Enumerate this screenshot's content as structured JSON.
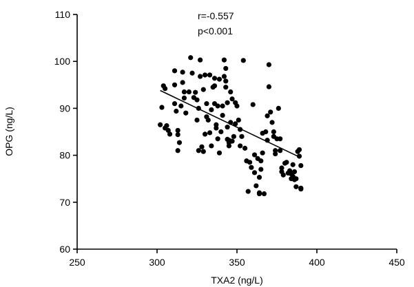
{
  "chart_data": {
    "type": "scatter",
    "xlabel": "TXA2 (ng/L)",
    "ylabel": "OPG (ng/L)",
    "xlim": [
      250,
      450
    ],
    "ylim": [
      60,
      110
    ],
    "xticks": [
      250,
      300,
      350,
      400,
      450
    ],
    "yticks": [
      60,
      70,
      80,
      90,
      100,
      110
    ],
    "grid": false,
    "annotations": [
      "r=-0.557",
      "p<0.001"
    ],
    "trendline": {
      "x": [
        302,
        388
      ],
      "y": [
        93.8,
        79.8
      ]
    },
    "points": [
      [
        302,
        86.5
      ],
      [
        303,
        90.2
      ],
      [
        304,
        94.8
      ],
      [
        305,
        94.2
      ],
      [
        305,
        85.8
      ],
      [
        306,
        86.3
      ],
      [
        307,
        85.3
      ],
      [
        308,
        84.5
      ],
      [
        311,
        91.0
      ],
      [
        311,
        95.0
      ],
      [
        311,
        98.0
      ],
      [
        312,
        89.4
      ],
      [
        313,
        85.3
      ],
      [
        313,
        84.4
      ],
      [
        313,
        81.0
      ],
      [
        314,
        82.7
      ],
      [
        315,
        90.5
      ],
      [
        316,
        97.7
      ],
      [
        316,
        95.5
      ],
      [
        317,
        93.5
      ],
      [
        317,
        92.2
      ],
      [
        318,
        89.0
      ],
      [
        320,
        93.5
      ],
      [
        321,
        100.8
      ],
      [
        322,
        97.5
      ],
      [
        323,
        92.3
      ],
      [
        324,
        93.4
      ],
      [
        325,
        91.8
      ],
      [
        325,
        87.5
      ],
      [
        326,
        90.0
      ],
      [
        326,
        81.0
      ],
      [
        327,
        100.3
      ],
      [
        327,
        96.8
      ],
      [
        328,
        81.8
      ],
      [
        329,
        80.8
      ],
      [
        329,
        94.0
      ],
      [
        330,
        84.5
      ],
      [
        330,
        97.1
      ],
      [
        331,
        91.0
      ],
      [
        331,
        88.2
      ],
      [
        332,
        87.5
      ],
      [
        333,
        97.1
      ],
      [
        333,
        84.8
      ],
      [
        334,
        89.7
      ],
      [
        334,
        82.0
      ],
      [
        335,
        94.5
      ],
      [
        336,
        94.8
      ],
      [
        336,
        96.4
      ],
      [
        336,
        91.0
      ],
      [
        337,
        86.5
      ],
      [
        337,
        85.8
      ],
      [
        338,
        90.5
      ],
      [
        338,
        83.5
      ],
      [
        339,
        80.5
      ],
      [
        339,
        96.2
      ],
      [
        340,
        85.0
      ],
      [
        341,
        90.5
      ],
      [
        341,
        88.5
      ],
      [
        342,
        100.3
      ],
      [
        342,
        96.8
      ],
      [
        343,
        94.5
      ],
      [
        343,
        98.5
      ],
      [
        343,
        95.8
      ],
      [
        344,
        91.2
      ],
      [
        344,
        86.0
      ],
      [
        345,
        83.2
      ],
      [
        345,
        82.7
      ],
      [
        345,
        82.0
      ],
      [
        346,
        93.5
      ],
      [
        346,
        87.0
      ],
      [
        347,
        92.0
      ],
      [
        347,
        83.0
      ],
      [
        348,
        84.0
      ],
      [
        349,
        86.7
      ],
      [
        349,
        91.2
      ],
      [
        350,
        90.5
      ],
      [
        351,
        87.5
      ],
      [
        352,
        82.0
      ],
      [
        352,
        85.5
      ],
      [
        353,
        84.0
      ],
      [
        354,
        100.2
      ],
      [
        355,
        81.5
      ],
      [
        356,
        78.8
      ],
      [
        357,
        72.3
      ],
      [
        358,
        78.5
      ],
      [
        359,
        77.4
      ],
      [
        360,
        90.8
      ],
      [
        361,
        80.1
      ],
      [
        361,
        76.3
      ],
      [
        362,
        73.5
      ],
      [
        363,
        79.3
      ],
      [
        364,
        75.3
      ],
      [
        364,
        72.0
      ],
      [
        364,
        71.8
      ],
      [
        365,
        78.8
      ],
      [
        365,
        77.0
      ],
      [
        366,
        84.7
      ],
      [
        366,
        80.5
      ],
      [
        367,
        71.8
      ],
      [
        368,
        85.0
      ],
      [
        369,
        88.4
      ],
      [
        369,
        83.2
      ],
      [
        370,
        94.6
      ],
      [
        370,
        99.3
      ],
      [
        371,
        89.2
      ],
      [
        372,
        87.0
      ],
      [
        373,
        85.0
      ],
      [
        373,
        84.0
      ],
      [
        374,
        81.0
      ],
      [
        374,
        80.3
      ],
      [
        375,
        83.5
      ],
      [
        376,
        90.0
      ],
      [
        377,
        83.5
      ],
      [
        377,
        81.0
      ],
      [
        378,
        77.3
      ],
      [
        378,
        76.5
      ],
      [
        379,
        75.8
      ],
      [
        380,
        78.3
      ],
      [
        381,
        78.5
      ],
      [
        382,
        76.2
      ],
      [
        383,
        76.7
      ],
      [
        384,
        76.0
      ],
      [
        385,
        78.0
      ],
      [
        385,
        75.5
      ],
      [
        386,
        76.5
      ],
      [
        387,
        75.0
      ],
      [
        387,
        73.3
      ],
      [
        388,
        80.8
      ],
      [
        389,
        81.2
      ],
      [
        389,
        79.8
      ],
      [
        390,
        77.8
      ],
      [
        390,
        73.0
      ],
      [
        390,
        72.8
      ],
      [
        386,
        74.8
      ],
      [
        384,
        75.0
      ],
      [
        344,
        83.4
      ]
    ]
  }
}
